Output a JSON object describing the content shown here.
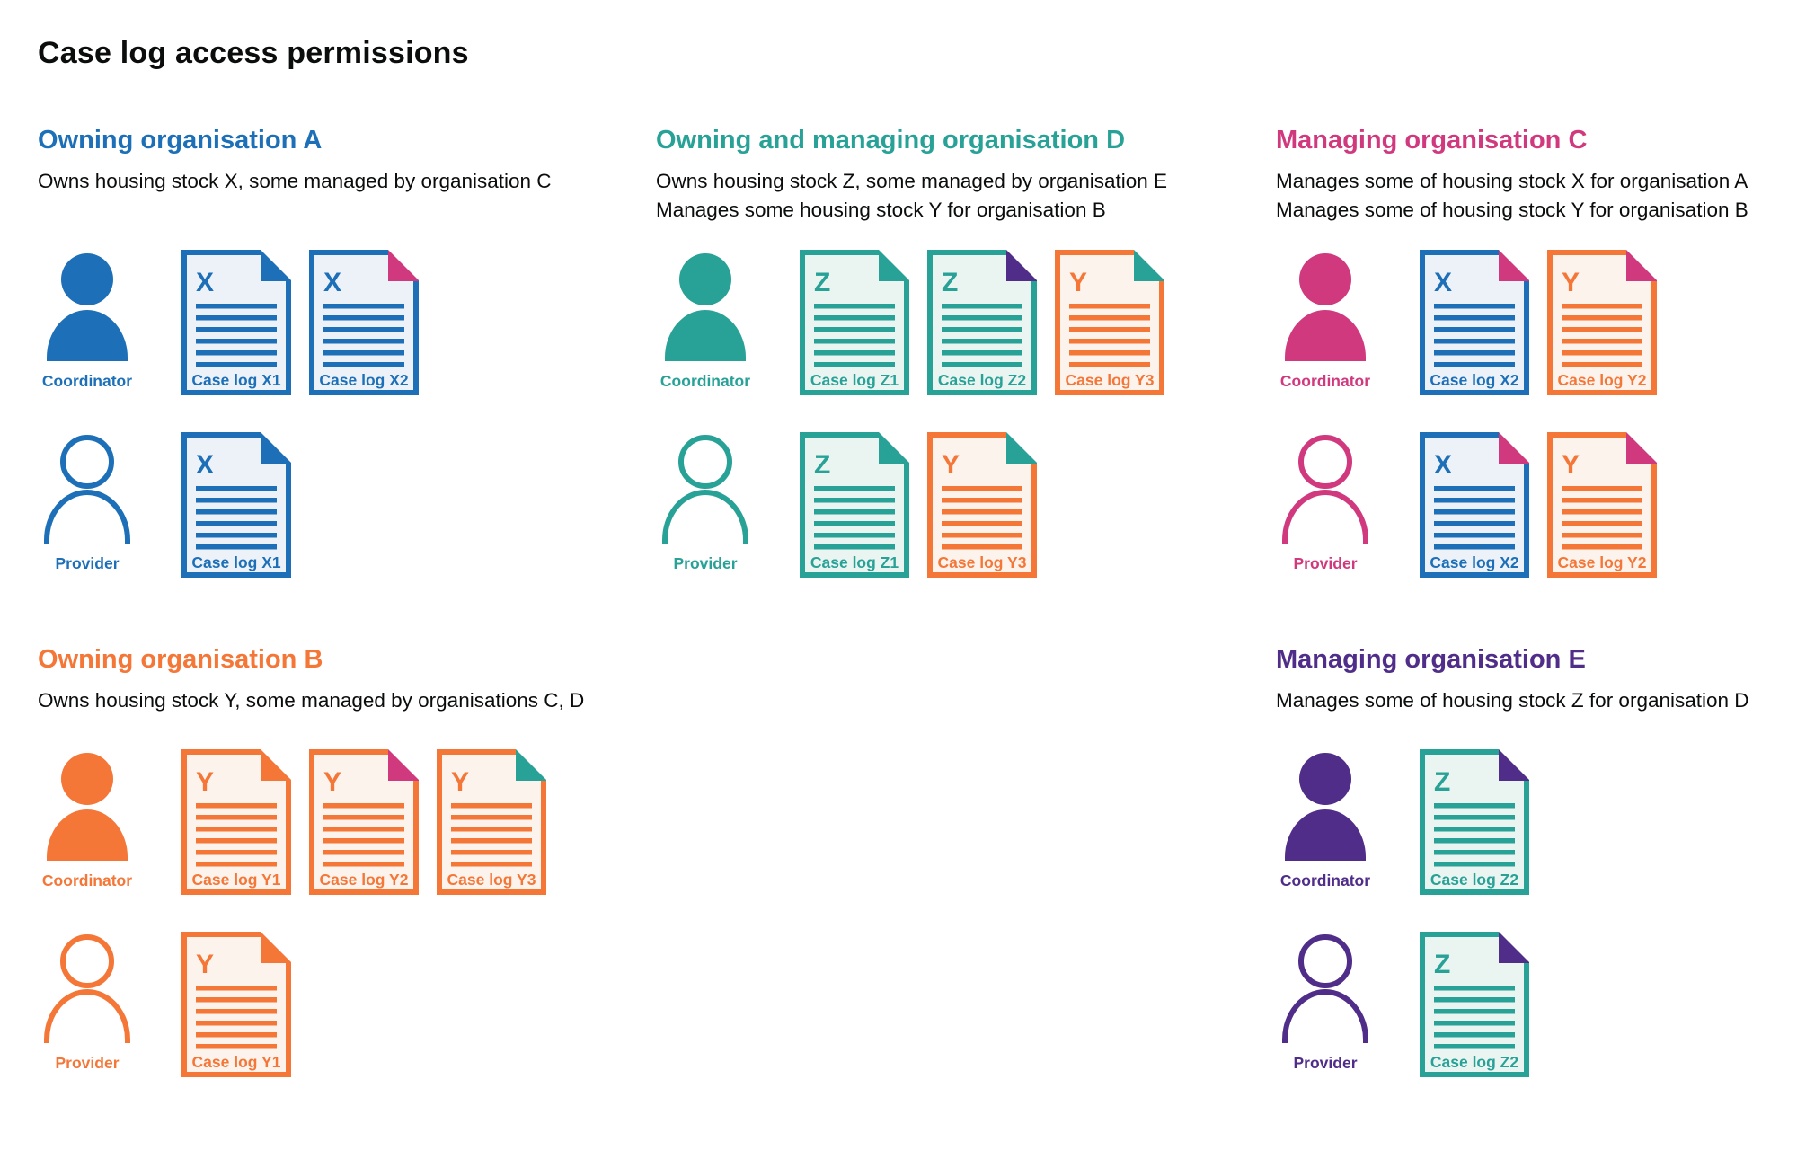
{
  "page": {
    "title": "Case log access permissions"
  },
  "colors": {
    "text": "#0b0c0c",
    "blue": "#1d70b8",
    "teal": "#28a197",
    "pink": "#d0397e",
    "orange": "#f47738",
    "purple": "#4f2d89",
    "blue_tint": "#edf2f9",
    "teal_tint": "#eaf5f2",
    "orange_tint": "#fdf3ed"
  },
  "sections": [
    {
      "id": "a",
      "title": "Owning organisation A",
      "color": "blue",
      "description": [
        "Owns housing stock X, some managed by organisation C"
      ],
      "rows": [
        {
          "role": "Coordinator",
          "person": "filled",
          "docs": [
            {
              "letter": "X",
              "label": "Case log X1",
              "color": "blue",
              "fold": "blue"
            },
            {
              "letter": "X",
              "label": "Case log X2",
              "color": "blue",
              "fold": "pink"
            }
          ]
        },
        {
          "role": "Provider",
          "person": "outline",
          "docs": [
            {
              "letter": "X",
              "label": "Case log X1",
              "color": "blue",
              "fold": "blue"
            }
          ]
        }
      ]
    },
    {
      "id": "d",
      "title": "Owning and managing organisation D",
      "color": "teal",
      "description": [
        "Owns housing stock Z, some managed by organisation E",
        "Manages some housing stock Y for organisation B"
      ],
      "rows": [
        {
          "role": "Coordinator",
          "person": "filled",
          "docs": [
            {
              "letter": "Z",
              "label": "Case log Z1",
              "color": "teal",
              "fold": "teal"
            },
            {
              "letter": "Z",
              "label": "Case log Z2",
              "color": "teal",
              "fold": "purple"
            },
            {
              "letter": "Y",
              "label": "Case log Y3",
              "color": "orange",
              "fold": "teal"
            }
          ]
        },
        {
          "role": "Provider",
          "person": "outline",
          "docs": [
            {
              "letter": "Z",
              "label": "Case log Z1",
              "color": "teal",
              "fold": "teal"
            },
            {
              "letter": "Y",
              "label": "Case log Y3",
              "color": "orange",
              "fold": "teal"
            }
          ]
        }
      ]
    },
    {
      "id": "c",
      "title": "Managing organisation C",
      "color": "pink",
      "description": [
        "Manages some of housing stock X for organisation A",
        "Manages some of housing stock Y for organisation B"
      ],
      "rows": [
        {
          "role": "Coordinator",
          "person": "filled",
          "docs": [
            {
              "letter": "X",
              "label": "Case log X2",
              "color": "blue",
              "fold": "pink"
            },
            {
              "letter": "Y",
              "label": "Case log Y2",
              "color": "orange",
              "fold": "pink"
            }
          ]
        },
        {
          "role": "Provider",
          "person": "outline",
          "docs": [
            {
              "letter": "X",
              "label": "Case log X2",
              "color": "blue",
              "fold": "pink"
            },
            {
              "letter": "Y",
              "label": "Case log Y2",
              "color": "orange",
              "fold": "pink"
            }
          ]
        }
      ]
    },
    {
      "id": "b",
      "title": "Owning organisation B",
      "color": "orange",
      "description": [
        "Owns housing stock Y, some managed by organisations C, D"
      ],
      "rows": [
        {
          "role": "Coordinator",
          "person": "filled",
          "docs": [
            {
              "letter": "Y",
              "label": "Case log Y1",
              "color": "orange",
              "fold": "orange"
            },
            {
              "letter": "Y",
              "label": "Case log Y2",
              "color": "orange",
              "fold": "pink"
            },
            {
              "letter": "Y",
              "label": "Case log Y3",
              "color": "orange",
              "fold": "teal"
            }
          ]
        },
        {
          "role": "Provider",
          "person": "outline",
          "docs": [
            {
              "letter": "Y",
              "label": "Case log Y1",
              "color": "orange",
              "fold": "orange"
            }
          ]
        }
      ]
    },
    {
      "id": "e",
      "title": "Managing organisation E",
      "color": "purple",
      "description": [
        "Manages some of housing stock Z for organisation D"
      ],
      "rows": [
        {
          "role": "Coordinator",
          "person": "filled",
          "docs": [
            {
              "letter": "Z",
              "label": "Case log Z2",
              "color": "teal",
              "fold": "purple"
            }
          ]
        },
        {
          "role": "Provider",
          "person": "outline",
          "docs": [
            {
              "letter": "Z",
              "label": "Case log Z2",
              "color": "teal",
              "fold": "purple"
            }
          ]
        }
      ]
    }
  ]
}
